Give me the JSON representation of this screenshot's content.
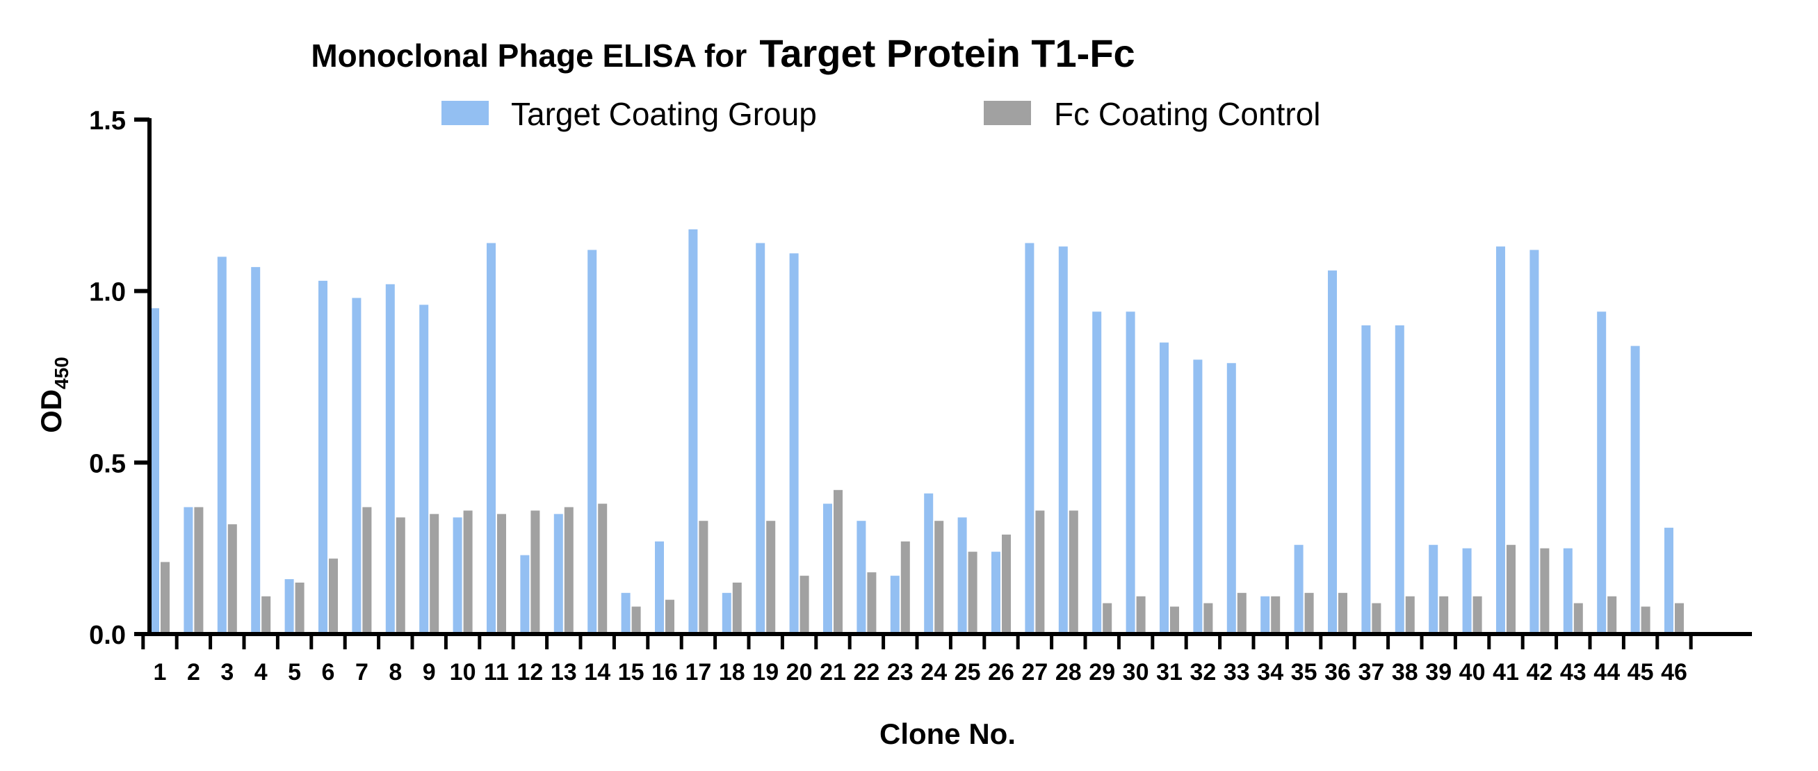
{
  "chart_data": {
    "type": "bar",
    "title_main": "Monoclonal Phage ELISA for",
    "title_emphasis": "Target Protein T1-Fc",
    "xlabel": "Clone No.",
    "ylabel_main": "OD",
    "ylabel_sub": "450",
    "ylim": [
      0,
      1.5
    ],
    "yticks": [
      "0.0",
      "0.5",
      "1.0",
      "1.5"
    ],
    "legend_position": "top",
    "categories": [
      "1",
      "2",
      "3",
      "4",
      "5",
      "6",
      "7",
      "8",
      "9",
      "10",
      "11",
      "12",
      "13",
      "14",
      "15",
      "16",
      "17",
      "18",
      "19",
      "20",
      "21",
      "22",
      "23",
      "24",
      "25",
      "26",
      "27",
      "28",
      "29",
      "30",
      "31",
      "32",
      "33",
      "34",
      "35",
      "36",
      "37",
      "38",
      "39",
      "40",
      "41",
      "42",
      "43",
      "44",
      "45",
      "46"
    ],
    "series": [
      {
        "name": "Target Coating Group",
        "color": "#93bff2",
        "values": [
          0.95,
          0.37,
          1.1,
          1.07,
          0.16,
          1.03,
          0.98,
          1.02,
          0.96,
          0.34,
          1.14,
          0.23,
          0.35,
          1.12,
          0.12,
          0.27,
          1.18,
          0.12,
          1.14,
          1.11,
          0.38,
          0.33,
          0.17,
          0.41,
          0.34,
          0.24,
          1.14,
          1.13,
          0.94,
          0.94,
          0.85,
          0.8,
          0.79,
          0.11,
          0.26,
          1.06,
          0.9,
          0.9,
          0.26,
          0.25,
          1.13,
          1.12,
          0.25,
          0.94,
          0.84,
          0.31
        ]
      },
      {
        "name": "Fc Coating Control",
        "color": "#a1a1a1",
        "values": [
          0.21,
          0.37,
          0.32,
          0.11,
          0.15,
          0.22,
          0.37,
          0.34,
          0.35,
          0.36,
          0.35,
          0.36,
          0.37,
          0.38,
          0.08,
          0.1,
          0.33,
          0.15,
          0.33,
          0.17,
          0.42,
          0.18,
          0.27,
          0.33,
          0.24,
          0.29,
          0.36,
          0.36,
          0.09,
          0.11,
          0.08,
          0.09,
          0.12,
          0.11,
          0.12,
          0.12,
          0.09,
          0.11,
          0.11,
          0.11,
          0.26,
          0.25,
          0.09,
          0.11,
          0.08,
          0.09
        ]
      }
    ]
  }
}
